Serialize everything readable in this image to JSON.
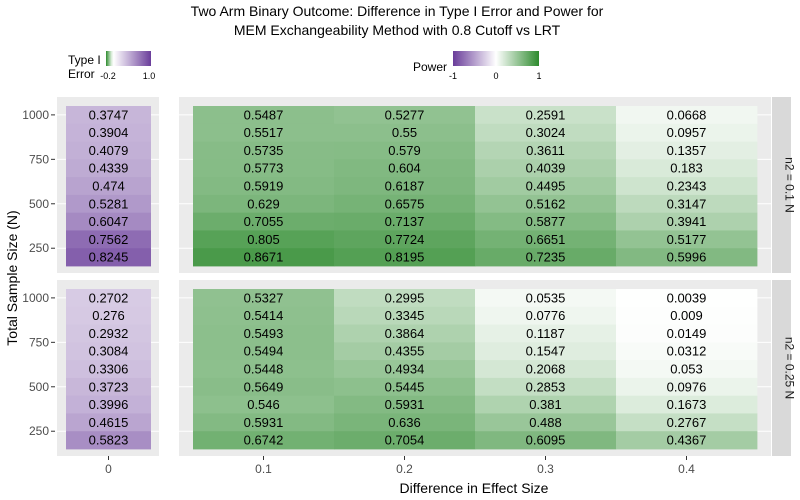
{
  "chart_data": {
    "type": "heatmap",
    "title_line1": "Two Arm Binary Outcome: Difference in Type I Error and Power for",
    "title_line2": "MEM Exchangeability Method with 0.8 Cutoff vs LRT",
    "xlabel": "Difference in Effect Size",
    "ylabel": "Total Sample Size (N)",
    "y_tick_labels": [
      "1000",
      "750",
      "500",
      "250"
    ],
    "y_tick_values": [
      1000,
      750,
      500,
      250
    ],
    "row_sample_sizes": [
      1000,
      900,
      800,
      700,
      600,
      500,
      400,
      300,
      200
    ],
    "type1_x_label": "0",
    "power_x_labels": [
      "0.1",
      "0.2",
      "0.3",
      "0.4"
    ],
    "legend_type1": {
      "title_line1": "Type I",
      "title_line2": "Error",
      "tick_labels": [
        "-0.2",
        "1.0"
      ],
      "low_color": "#2e8b2e",
      "mid_color": "#ffffff",
      "high_color": "#6a3d9a"
    },
    "legend_power": {
      "title": "Power",
      "tick_labels": [
        "-1",
        "0",
        "1"
      ],
      "low_color": "#6a3d9a",
      "mid_color": "#ffffff",
      "high_color": "#2e8b2e"
    },
    "panels": [
      {
        "strip_label": "n2 = 0.1 N",
        "type1_values": [
          "0.3747",
          "0.3904",
          "0.4079",
          "0.4339",
          "0.474",
          "0.5281",
          "0.6047",
          "0.7562",
          "0.8245"
        ],
        "power_values": [
          [
            "0.5487",
            "0.5277",
            "0.2591",
            "0.0668"
          ],
          [
            "0.5517",
            "0.55",
            "0.3024",
            "0.0957"
          ],
          [
            "0.5735",
            "0.579",
            "0.3611",
            "0.1357"
          ],
          [
            "0.5773",
            "0.604",
            "0.4039",
            "0.183"
          ],
          [
            "0.5919",
            "0.6187",
            "0.4495",
            "0.2343"
          ],
          [
            "0.629",
            "0.6575",
            "0.5162",
            "0.3147"
          ],
          [
            "0.7055",
            "0.7137",
            "0.5877",
            "0.3941"
          ],
          [
            "0.805",
            "0.7724",
            "0.6651",
            "0.5177"
          ],
          [
            "0.8671",
            "0.8195",
            "0.7235",
            "0.5996"
          ]
        ]
      },
      {
        "strip_label": "n2 = 0.25 N",
        "type1_values": [
          "0.2702",
          "0.276",
          "0.2932",
          "0.3084",
          "0.3306",
          "0.3723",
          "0.3996",
          "0.4615",
          "0.5823"
        ],
        "power_values": [
          [
            "0.5327",
            "0.2995",
            "0.0535",
            "0.0039"
          ],
          [
            "0.5414",
            "0.3345",
            "0.0776",
            "0.009"
          ],
          [
            "0.5493",
            "0.3864",
            "0.1187",
            "0.0149"
          ],
          [
            "0.5494",
            "0.4355",
            "0.1547",
            "0.0312"
          ],
          [
            "0.5448",
            "0.4934",
            "0.2068",
            "0.053"
          ],
          [
            "0.5649",
            "0.5445",
            "0.2853",
            "0.0976"
          ],
          [
            "0.546",
            "0.5931",
            "0.381",
            "0.1673"
          ],
          [
            "0.5931",
            "0.636",
            "0.488",
            "0.2767"
          ],
          [
            "0.6742",
            "0.7054",
            "0.6095",
            "0.4367"
          ]
        ]
      }
    ],
    "grid": true
  }
}
